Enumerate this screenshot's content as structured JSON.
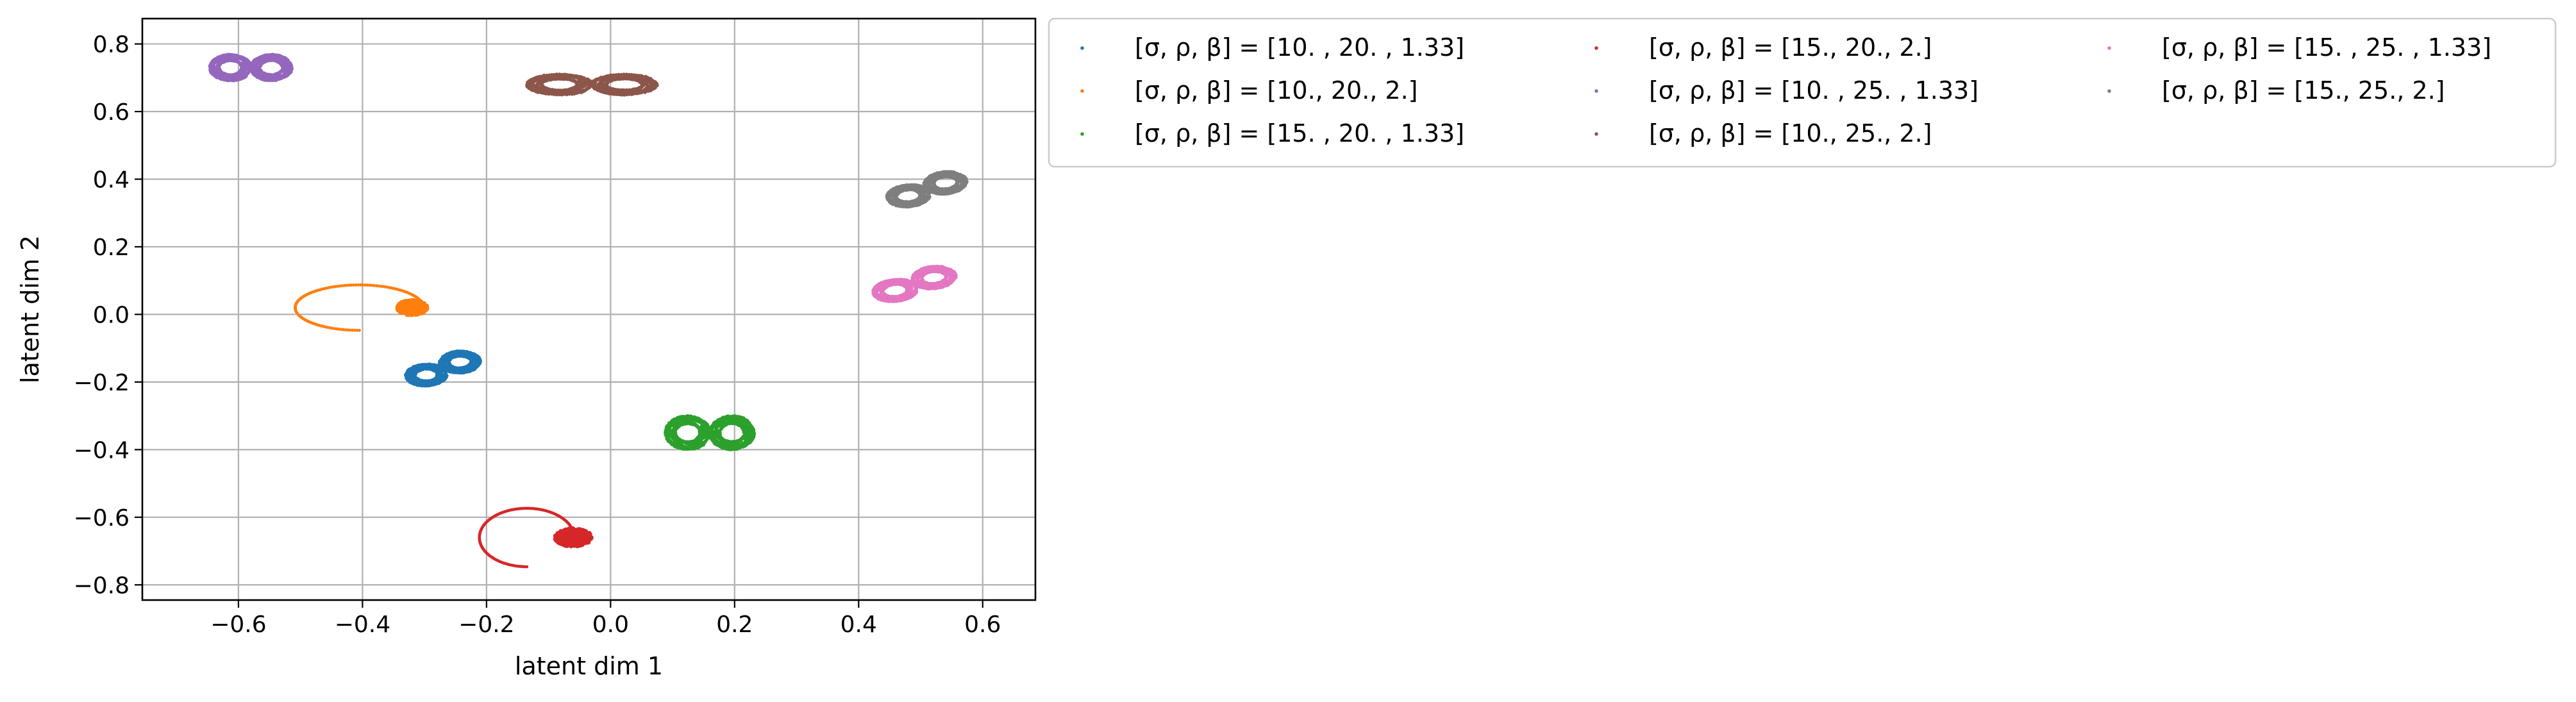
{
  "chart_data": {
    "type": "scatter",
    "title": "",
    "xlabel": "latent dim 1",
    "ylabel": "latent dim 2",
    "xlim": [
      -0.755,
      0.685
    ],
    "ylim": [
      -0.845,
      0.875
    ],
    "xticks": [
      -0.6,
      -0.4,
      -0.2,
      0.0,
      0.2,
      0.4,
      0.6
    ],
    "xtick_labels": [
      "−0.6",
      "−0.4",
      "−0.2",
      "0.0",
      "0.2",
      "0.4",
      "0.6"
    ],
    "yticks": [
      -0.8,
      -0.6,
      -0.4,
      -0.2,
      0.0,
      0.2,
      0.4,
      0.6,
      0.8
    ],
    "ytick_labels": [
      "−0.8",
      "−0.6",
      "−0.4",
      "−0.2",
      "0.0",
      "0.2",
      "0.4",
      "0.6",
      "0.8"
    ],
    "grid": true,
    "legend": {
      "placement": "outside-right-top",
      "columns": 3
    },
    "series": [
      {
        "name": "[σ, ρ, β] = [10.  , 20.  ,  1.33]",
        "color": "#1f77b4",
        "shape": "tilted-butterfly",
        "center": [
          -0.27,
          -0.16
        ],
        "x_range": [
          -0.37,
          -0.18
        ],
        "y_range": [
          -0.24,
          -0.09
        ]
      },
      {
        "name": "[σ, ρ, β] = [10., 20.,  2.]",
        "color": "#ff7f0e",
        "shape": "spiral-transient-to-fixed-point",
        "center": [
          -0.32,
          0.02
        ],
        "x_range": [
          -0.5,
          -0.27
        ],
        "y_range": [
          -0.06,
          0.08
        ]
      },
      {
        "name": "[σ, ρ, β] = [15.  , 20.  ,  1.33]",
        "color": "#2ca02c",
        "shape": "butterfly",
        "center": [
          0.16,
          -0.35
        ],
        "x_range": [
          0.03,
          0.29
        ],
        "y_range": [
          -0.43,
          -0.25
        ]
      },
      {
        "name": "[σ, ρ, β] = [15., 20.,  2.]",
        "color": "#d62728",
        "shape": "spiral-transient-to-fixed-point",
        "center": [
          -0.06,
          -0.66
        ],
        "x_range": [
          -0.2,
          -0.03
        ],
        "y_range": [
          -0.78,
          -0.6
        ]
      },
      {
        "name": "[σ, ρ, β] = [10.  , 25.  ,  1.33]",
        "color": "#9467bd",
        "shape": "butterfly",
        "center": [
          -0.58,
          0.73
        ],
        "x_range": [
          -0.68,
          -0.44
        ],
        "y_range": [
          0.65,
          0.79
        ]
      },
      {
        "name": "[σ, ρ, β] = [10., 25.,  2.]",
        "color": "#8c564b",
        "shape": "butterfly",
        "center": [
          -0.03,
          0.68
        ],
        "x_range": [
          -0.26,
          0.12
        ],
        "y_range": [
          0.61,
          0.72
        ]
      },
      {
        "name": "[σ, ρ, β] = [15.  , 25.  ,  1.33]",
        "color": "#e377c2",
        "shape": "tilted-butterfly",
        "center": [
          0.49,
          0.09
        ],
        "x_range": [
          0.36,
          0.58
        ],
        "y_range": [
          0.02,
          0.17
        ]
      },
      {
        "name": "[σ, ρ, β] = [15., 25.,  2.]",
        "color": "#7f7f7f",
        "shape": "tilted-butterfly",
        "center": [
          0.51,
          0.37
        ],
        "x_range": [
          0.41,
          0.62
        ],
        "y_range": [
          0.3,
          0.45
        ]
      }
    ]
  }
}
